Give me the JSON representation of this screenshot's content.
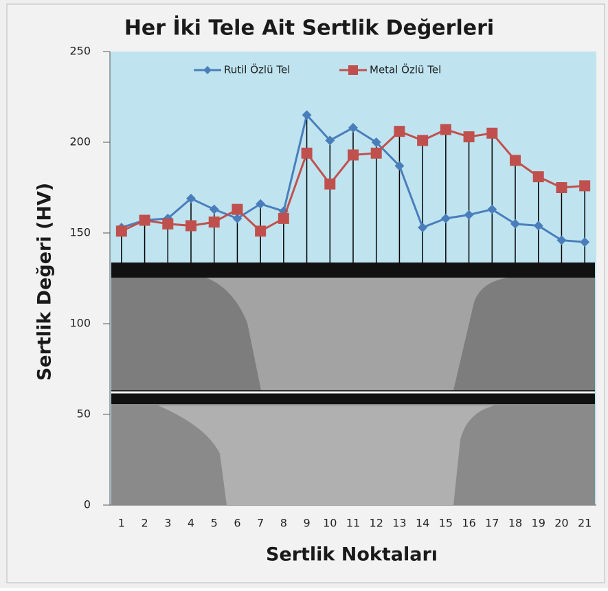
{
  "chart_data": {
    "type": "line",
    "title": "Her İki Tele Ait Sertlik Değerleri",
    "x_label": "Sertlik Noktaları",
    "y_label": "Sertlik Değeri (HV)",
    "categories": [
      "1",
      "2",
      "3",
      "4",
      "5",
      "6",
      "7",
      "8",
      "9",
      "10",
      "11",
      "12",
      "13",
      "14",
      "15",
      "16",
      "17",
      "18",
      "19",
      "20",
      "21"
    ],
    "series": [
      {
        "name": "Rutil Özlü Tel",
        "color": "#4a7ebb",
        "marker": "diamond",
        "values": [
          153,
          157,
          158,
          169,
          163,
          158,
          166,
          162,
          215,
          201,
          208,
          200,
          187,
          153,
          158,
          160,
          163,
          155,
          154,
          146,
          145
        ]
      },
      {
        "name": "Metal Özlü Tel",
        "color": "#c0504d",
        "marker": "square",
        "values": [
          151,
          157,
          155,
          154,
          156,
          163,
          151,
          158,
          194,
          177,
          193,
          194,
          206,
          201,
          207,
          203,
          205,
          190,
          181,
          175,
          176
        ]
      }
    ],
    "ylim": [
      0,
      250
    ],
    "yticks": [
      0,
      50,
      100,
      150,
      200,
      250
    ],
    "legend": "top"
  }
}
